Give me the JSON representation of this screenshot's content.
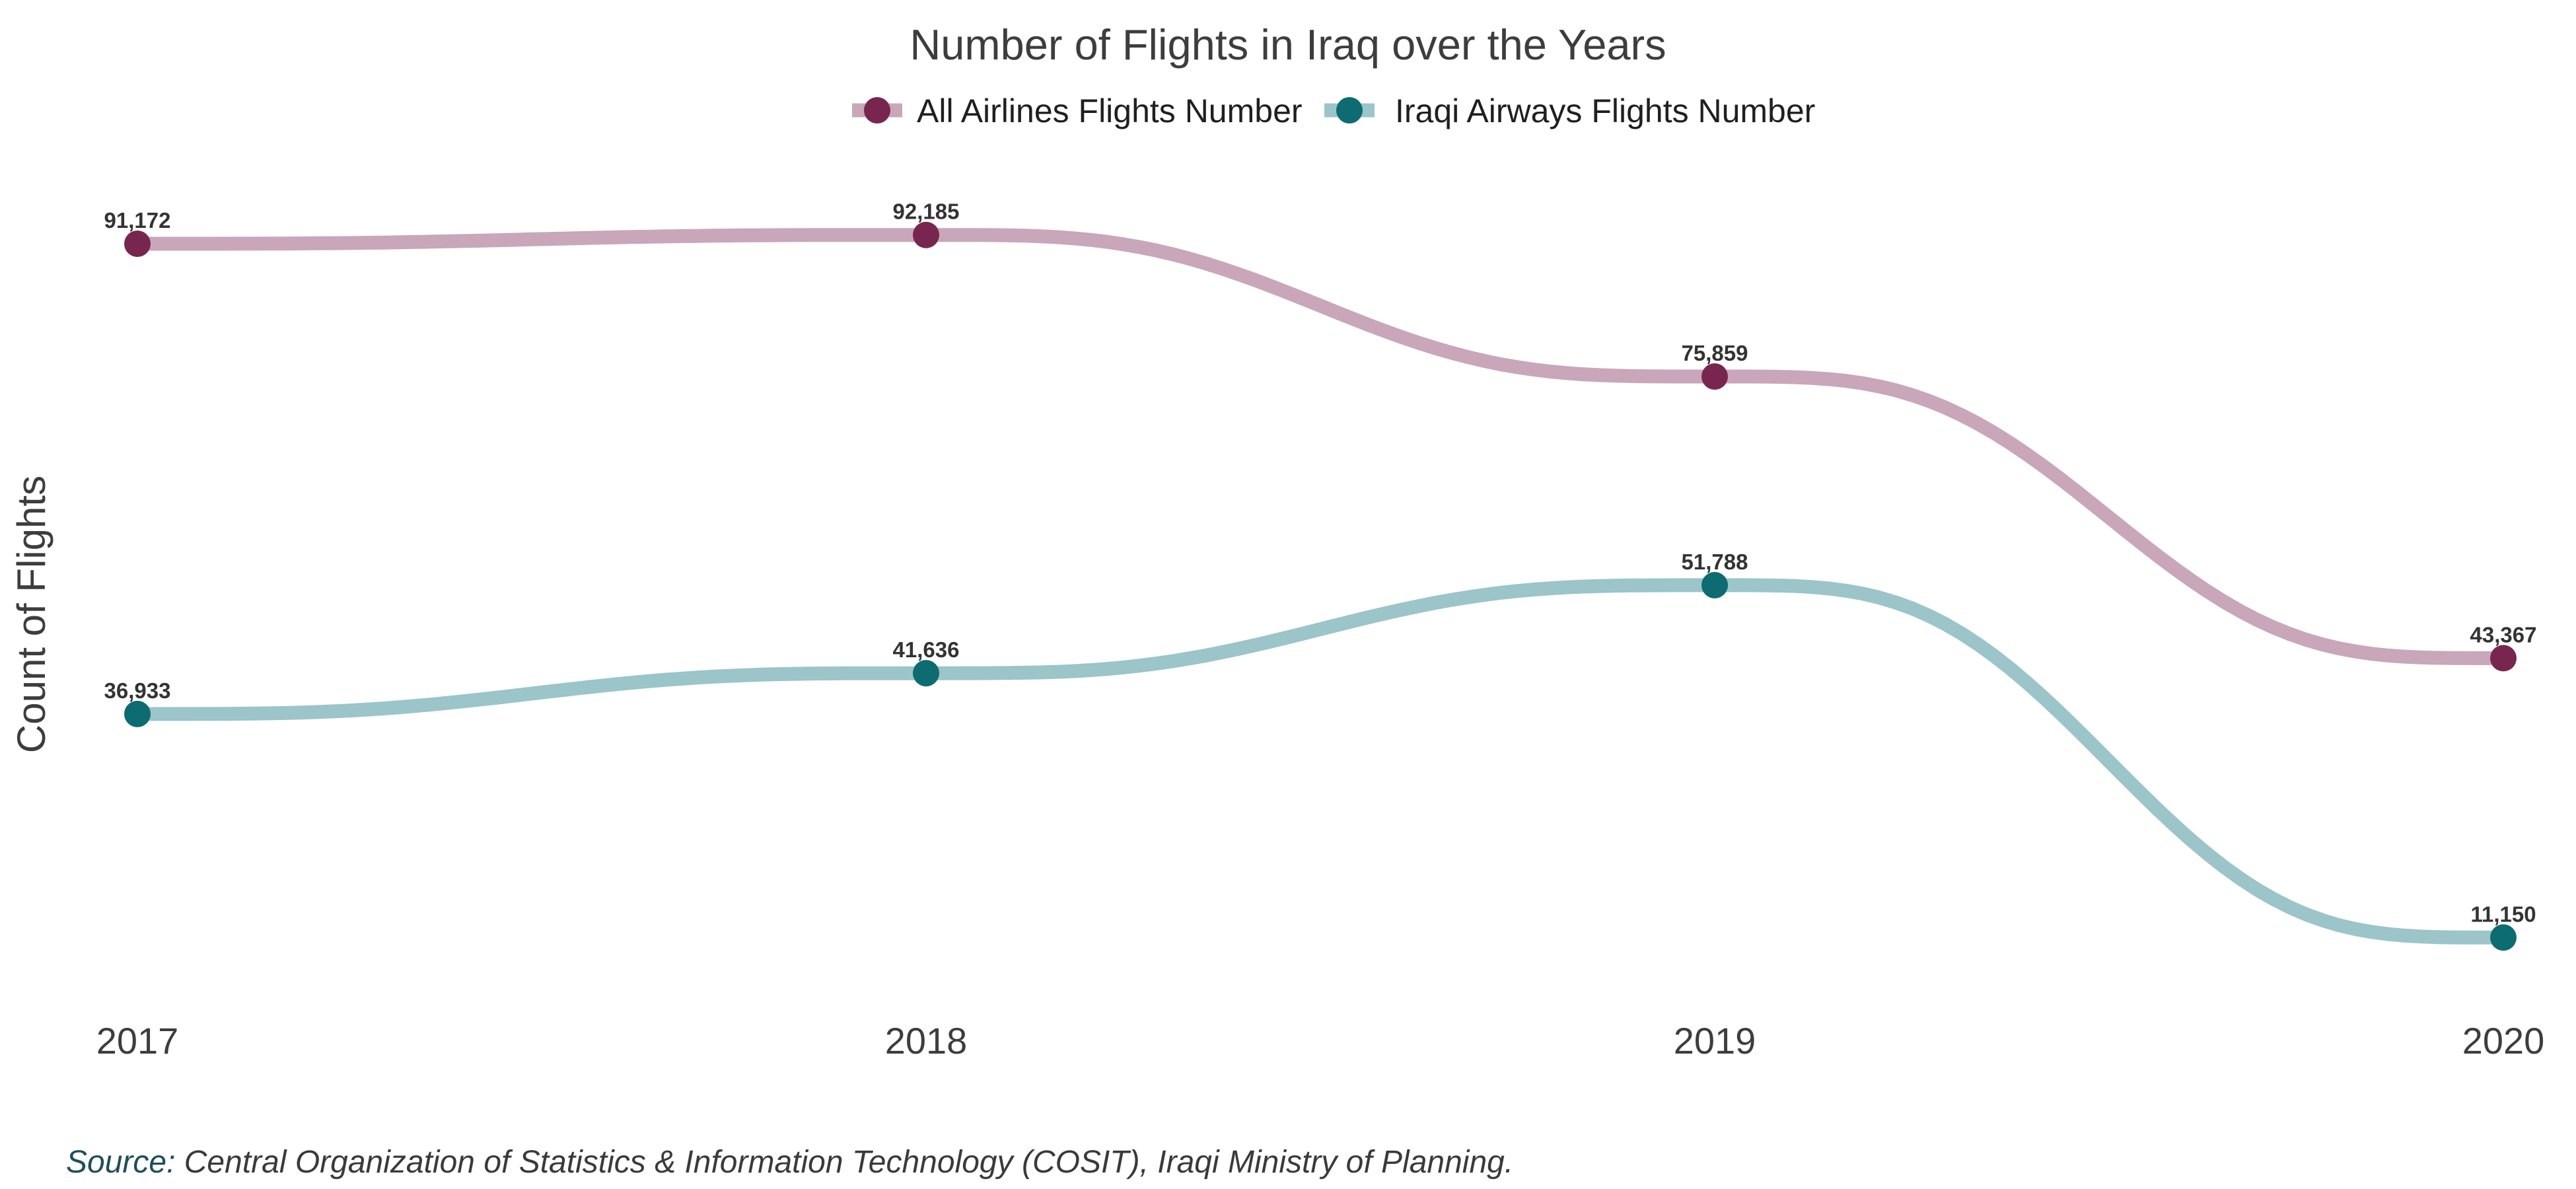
{
  "chart_data": {
    "type": "line",
    "title": "Number of Flights in Iraq over the Years",
    "xlabel": "",
    "ylabel": "Count of Flights",
    "categories": [
      "2017",
      "2018",
      "2019",
      "2020"
    ],
    "series": [
      {
        "name": "All Airlines Flights Number",
        "values": [
          91172,
          92185,
          75859,
          43367
        ],
        "labels": [
          "91,172",
          "92,185",
          "75,859",
          "43,367"
        ],
        "point_color": "#782650",
        "line_color": "#c9a6b9"
      },
      {
        "name": "Iraqi Airways Flights Number",
        "values": [
          36933,
          41636,
          51788,
          11150
        ],
        "labels": [
          "36,933",
          "41,636",
          "51,788",
          "11,150"
        ],
        "point_color": "#0d6b72",
        "line_color": "#9bc5c8"
      }
    ],
    "ylim": [
      5000,
      101000
    ],
    "y_axis_visible": false,
    "grid": false,
    "legend_position": "top-center",
    "line_style": "smooth-step"
  },
  "source": {
    "prefix": "Source:",
    "text": " Central Organization of Statistics & Information Technology (COSIT), Iraqi Ministry of Planning.",
    "prefix_color": "#1f4e5a"
  }
}
